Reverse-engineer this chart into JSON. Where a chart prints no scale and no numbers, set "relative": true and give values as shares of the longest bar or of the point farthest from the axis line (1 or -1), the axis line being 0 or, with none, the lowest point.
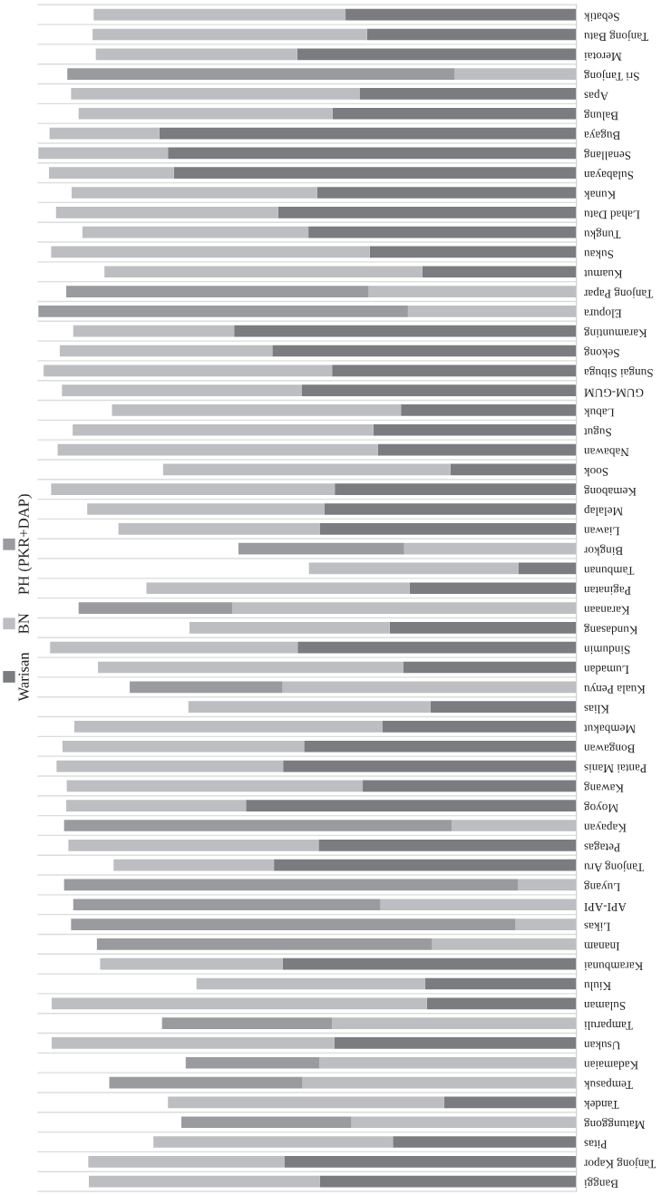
{
  "chart_data": {
    "type": "bar",
    "orientation": "horizontal",
    "stacked": true,
    "relative": true,
    "grid": "y",
    "legend": "left",
    "categories": [
      "Sebatik",
      "Tanjong Batu",
      "Merotai",
      "Sri Tanjong",
      "Apas",
      "Balung",
      "Bugaya",
      "Senallang",
      "Sulabayan",
      "Kunak",
      "Lahad Datu",
      "Tungku",
      "Sukau",
      "Kuamut",
      "Tanjong Papar",
      "Elopura",
      "Karamunting",
      "Sekong",
      "Sungai Sibuga",
      "GUM-GUM",
      "Labuk",
      "Sugut",
      "Nabawan",
      "Sook",
      "Kemabong",
      "Melalap",
      "Liawan",
      "Bingkor",
      "Tambunan",
      "Paginatan",
      "Karanaan",
      "Kundasang",
      "Sindumin",
      "Lumadan",
      "Kuala Penyu",
      "Klias",
      "Membakut",
      "Bongawan",
      "Pantai Manis",
      "Kawang",
      "Moyog",
      "Kapayan",
      "Petagas",
      "Tanjong Aru",
      "Luyang",
      "API-API",
      "Likas",
      "Inanam",
      "Karambunai",
      "Kiulu",
      "Sulaman",
      "Tamparuli",
      "Usukan",
      "Kadamaian",
      "Tempasuk",
      "Tandek",
      "Matunggong",
      "Pitas",
      "Tanjong Kapor",
      "Banggi"
    ],
    "series": [
      {
        "name": "Warisan",
        "color": "#7b7c80",
        "values": [
          0.429,
          0.389,
          0.519,
          null,
          0.403,
          0.453,
          0.775,
          0.759,
          0.748,
          0.482,
          0.554,
          0.498,
          0.384,
          0.286,
          null,
          null,
          0.636,
          0.565,
          0.454,
          0.51,
          0.326,
          0.377,
          0.369,
          0.234,
          0.449,
          0.468,
          0.477,
          null,
          0.108,
          0.31,
          null,
          0.347,
          0.518,
          0.322,
          null,
          0.271,
          0.36,
          0.506,
          0.545,
          0.397,
          0.614,
          null,
          0.479,
          0.562,
          null,
          null,
          null,
          null,
          0.546,
          0.281,
          0.278,
          null,
          0.45,
          null,
          null,
          0.246,
          null,
          0.341,
          0.542,
          0.477
        ]
      },
      {
        "name": "BN",
        "color": "#bdbec1",
        "values": [
          0.468,
          0.51,
          0.374,
          0.226,
          0.536,
          0.472,
          0.204,
          0.241,
          0.232,
          0.456,
          0.413,
          0.42,
          0.592,
          0.591,
          0.386,
          0.313,
          0.299,
          0.395,
          0.536,
          0.446,
          0.537,
          0.559,
          0.595,
          0.534,
          0.527,
          0.441,
          0.374,
          0.32,
          0.389,
          0.489,
          0.639,
          0.372,
          0.46,
          0.567,
          0.546,
          0.45,
          0.573,
          0.449,
          0.421,
          0.55,
          0.334,
          0.232,
          0.465,
          0.298,
          0.108,
          0.364,
          0.113,
          0.268,
          0.339,
          0.425,
          0.697,
          0.454,
          0.525,
          0.478,
          0.509,
          0.513,
          0.418,
          0.445,
          0.365,
          0.429
        ]
      },
      {
        "name": "PH (PKR+DAP)",
        "color": "#9a9b9f",
        "values": [
          null,
          null,
          null,
          0.72,
          null,
          null,
          null,
          null,
          null,
          null,
          null,
          null,
          null,
          null,
          0.562,
          0.687,
          null,
          null,
          null,
          null,
          null,
          null,
          null,
          null,
          null,
          null,
          null,
          0.308,
          null,
          null,
          0.286,
          null,
          null,
          null,
          0.284,
          null,
          null,
          null,
          null,
          null,
          null,
          0.72,
          null,
          null,
          0.844,
          0.571,
          0.826,
          0.623,
          null,
          null,
          null,
          0.316,
          null,
          0.248,
          0.359,
          null,
          0.316,
          null,
          null,
          null
        ]
      }
    ]
  }
}
